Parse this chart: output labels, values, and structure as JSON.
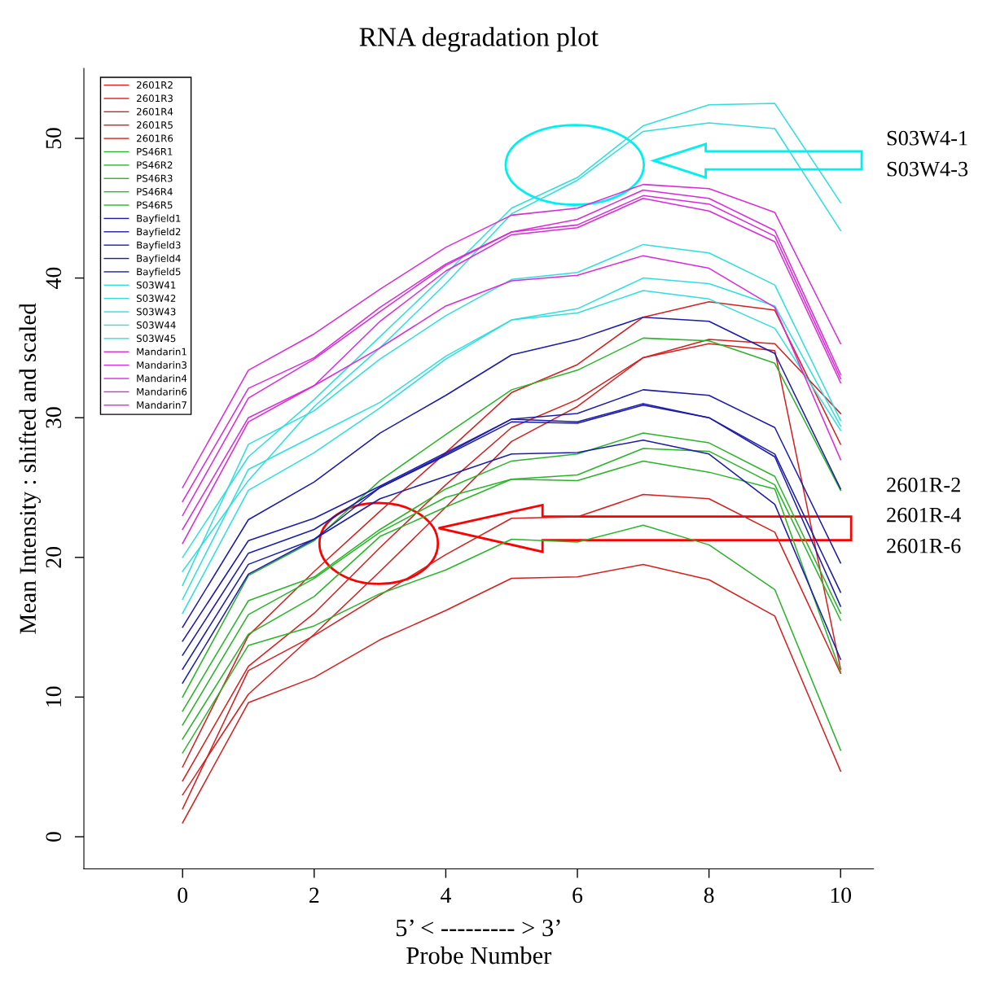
{
  "chart_data": {
    "type": "line",
    "title": "RNA degradation plot",
    "xlabel": "5’ < --------- > 3’\nProbe Number",
    "ylabel": "Mean Intensity : shifted and scaled",
    "x": [
      0,
      1,
      2,
      3,
      4,
      5,
      6,
      7,
      8,
      9,
      10
    ],
    "xlim": [
      -1.5,
      10.5
    ],
    "ylim": [
      -2.3,
      55
    ],
    "xticks": [
      0,
      2,
      4,
      6,
      8,
      10
    ],
    "yticks": [
      0,
      10,
      20,
      30,
      40,
      50
    ],
    "grid": false,
    "legend": "top left",
    "marker": "none",
    "line_style": "solid",
    "series": [
      {
        "name": "2601R2",
        "color": "#d42020",
        "values": [
          1,
          9.6,
          11.4,
          14.1,
          16.2,
          18.5,
          18.6,
          19.5,
          18.4,
          15.8,
          4.7
        ]
      },
      {
        "name": "2601R3",
        "color": "#d42020",
        "values": [
          2,
          11.9,
          14.4,
          17.3,
          20.2,
          22.8,
          22.9,
          24.5,
          24.2,
          21.8,
          11.7
        ]
      },
      {
        "name": "2601R4",
        "color": "#d42020",
        "values": [
          3,
          10.2,
          14.5,
          19.0,
          23.6,
          28.3,
          30.8,
          34.3,
          35.3,
          34.8,
          12.0
        ]
      },
      {
        "name": "2601R5",
        "color": "#d42020",
        "values": [
          4,
          12.2,
          16.0,
          20.7,
          25.2,
          29.3,
          31.3,
          34.3,
          35.6,
          35.3,
          30.3
        ]
      },
      {
        "name": "2601R6",
        "color": "#d42020",
        "values": [
          5,
          14.4,
          19.0,
          23.3,
          27.5,
          31.8,
          33.8,
          37.2,
          38.3,
          37.7,
          28.1
        ]
      },
      {
        "name": "PS46R1",
        "color": "#2ab42a",
        "values": [
          6,
          13.7,
          15.1,
          17.4,
          19.1,
          21.3,
          21.1,
          22.3,
          20.9,
          17.7,
          6.2
        ]
      },
      {
        "name": "PS46R2",
        "color": "#2ab42a",
        "values": [
          7,
          14.5,
          17.2,
          21.5,
          23.6,
          25.6,
          25.5,
          26.9,
          26.1,
          24.9,
          11.8
        ]
      },
      {
        "name": "PS46R3",
        "color": "#2ab42a",
        "values": [
          8,
          15.9,
          18.5,
          21.8,
          24.3,
          25.6,
          25.9,
          27.8,
          27.6,
          25.2,
          15.5
        ]
      },
      {
        "name": "PS46R4",
        "color": "#2ab42a",
        "values": [
          9,
          16.9,
          18.6,
          22.0,
          24.9,
          26.9,
          27.4,
          28.9,
          28.2,
          25.8,
          16.0
        ]
      },
      {
        "name": "PS46R5",
        "color": "#2ab42a",
        "values": [
          10,
          18.7,
          21.2,
          25.5,
          28.8,
          32.0,
          33.4,
          35.7,
          35.5,
          33.9,
          24.8
        ]
      },
      {
        "name": "Bayfield1",
        "color": "#1c1ca8",
        "values": [
          11,
          18.8,
          21.3,
          24.2,
          25.8,
          27.4,
          27.5,
          28.4,
          27.4,
          23.8,
          12.7
        ]
      },
      {
        "name": "Bayfield2",
        "color": "#1c1ca8",
        "values": [
          12,
          19.5,
          21.3,
          25.0,
          27.3,
          29.7,
          29.6,
          30.9,
          30.0,
          27.2,
          16.5
        ]
      },
      {
        "name": "Bayfield3",
        "color": "#1c1ca8",
        "values": [
          13,
          20.3,
          22.0,
          25.0,
          27.4,
          29.9,
          29.7,
          31.0,
          30.0,
          27.4,
          17.5
        ]
      },
      {
        "name": "Bayfield4",
        "color": "#1c1ca8",
        "values": [
          14,
          21.2,
          22.8,
          25.1,
          27.5,
          29.9,
          30.3,
          32.0,
          31.6,
          29.3,
          19.6
        ]
      },
      {
        "name": "Bayfield5",
        "color": "#1c1ca8",
        "values": [
          15,
          22.7,
          25.4,
          28.9,
          31.6,
          34.5,
          35.6,
          37.2,
          36.9,
          34.6,
          24.9
        ]
      },
      {
        "name": "S03W41",
        "color": "#30dede",
        "values": [
          16,
          24.8,
          27.5,
          30.7,
          34.2,
          37.0,
          37.5,
          39.1,
          38.5,
          36.4,
          29.1
        ]
      },
      {
        "name": "S03W42",
        "color": "#30dede",
        "values": [
          17,
          26.3,
          28.7,
          31.1,
          34.4,
          37.0,
          37.8,
          40.0,
          39.6,
          38.0,
          29.4
        ]
      },
      {
        "name": "S03W43",
        "color": "#30dede",
        "values": [
          18,
          28.1,
          30.5,
          34.2,
          37.3,
          39.9,
          40.4,
          42.4,
          41.8,
          39.5,
          29.8
        ]
      },
      {
        "name": "S03W44",
        "color": "#30dede",
        "values": [
          19,
          25.5,
          30.8,
          35.0,
          39.6,
          44.6,
          47.0,
          50.5,
          51.1,
          50.7,
          43.4
        ]
      },
      {
        "name": "S03W45",
        "color": "#30dede",
        "values": [
          20,
          27.2,
          31.3,
          35.8,
          40.3,
          45.0,
          47.2,
          50.9,
          52.4,
          52.5,
          45.4
        ]
      },
      {
        "name": "Mandarin1",
        "color": "#d82cd8",
        "values": [
          21,
          29.7,
          32.3,
          35.0,
          38.0,
          39.8,
          40.2,
          41.6,
          40.7,
          37.9,
          27.0
        ]
      },
      {
        "name": "Mandarin3",
        "color": "#d82cd8",
        "values": [
          22,
          30.0,
          32.3,
          36.9,
          40.5,
          43.1,
          43.6,
          45.7,
          44.8,
          42.6,
          32.5
        ]
      },
      {
        "name": "Mandarin4",
        "color": "#d82cd8",
        "values": [
          23,
          31.4,
          34.2,
          37.6,
          40.9,
          43.3,
          43.8,
          45.9,
          45.3,
          43.0,
          32.8
        ]
      },
      {
        "name": "Mandarin6",
        "color": "#d82cd8",
        "values": [
          24,
          32.1,
          34.3,
          37.9,
          41.0,
          43.3,
          44.2,
          46.3,
          45.7,
          43.4,
          33.1
        ]
      },
      {
        "name": "Mandarin7",
        "color": "#d82cd8",
        "values": [
          25,
          33.4,
          36.0,
          39.2,
          42.2,
          44.5,
          45.0,
          46.7,
          46.4,
          44.7,
          35.3
        ]
      }
    ],
    "annotations": [
      "S03W4-1",
      "S03W4-3",
      "2601R-2",
      "2601R-4",
      "2601R-6"
    ]
  }
}
